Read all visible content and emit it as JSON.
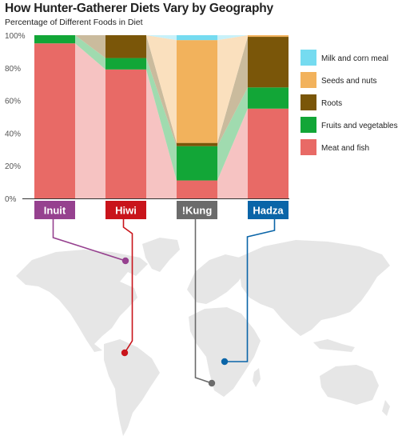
{
  "title": "How Hunter-Gatherer Diets Vary by Geography",
  "subtitle": "Percentage of Different Foods in Diet",
  "chart_data": {
    "type": "bar",
    "stacked": true,
    "categories": [
      "Inuit",
      "Hiwi",
      "!Kung",
      "Hadza"
    ],
    "category_colors": [
      "#96418f",
      "#c9141b",
      "#6b6b6b",
      "#0a65a8"
    ],
    "yticks": [
      "0%",
      "20%",
      "40%",
      "60%",
      "80%",
      "100%"
    ],
    "ylim": [
      0,
      100
    ],
    "series": [
      {
        "name": "Meat and fish",
        "color": "#e86a66",
        "values": [
          95,
          79,
          11,
          55
        ]
      },
      {
        "name": "Fruits and vegetables",
        "color": "#12a637",
        "values": [
          5,
          7,
          21,
          13
        ]
      },
      {
        "name": "Roots",
        "color": "#7a5609",
        "values": [
          0,
          14,
          2,
          31
        ]
      },
      {
        "name": "Seeds and nuts",
        "color": "#f2b25c",
        "values": [
          0,
          0,
          63,
          1
        ]
      },
      {
        "name": "Milk and corn meal",
        "color": "#75dbf0",
        "values": [
          0,
          0,
          3,
          0
        ]
      }
    ],
    "legend_order": [
      "Milk and corn meal",
      "Seeds and nuts",
      "Roots",
      "Fruits and vegetables",
      "Meat and fish"
    ],
    "legend_position": "right",
    "grid": false,
    "map": {
      "background": "world-map",
      "color": "#e6e6e6"
    }
  }
}
